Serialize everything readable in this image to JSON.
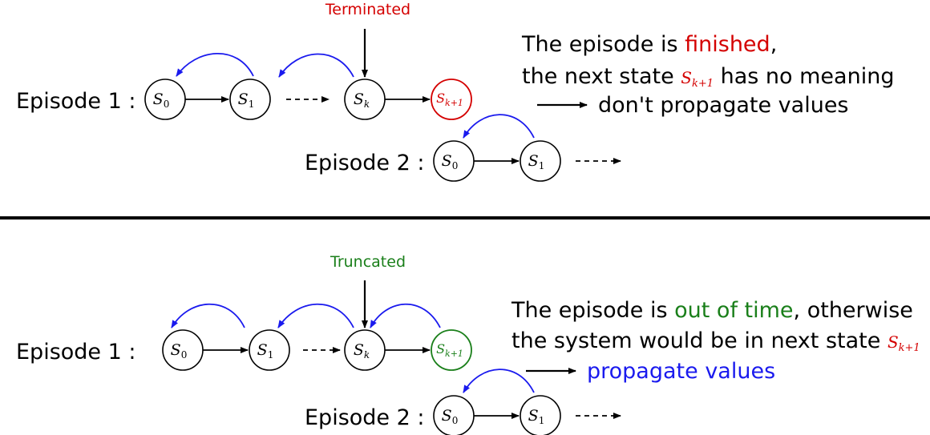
{
  "colors": {
    "black": "#000000",
    "red": "#d40000",
    "green": "#1a7f1a",
    "blue": "#1a1aee"
  },
  "top": {
    "annotation": "Terminated",
    "episode1_label": "Episode 1 :",
    "episode2_label": "Episode 2 :",
    "states1": {
      "s0": "S",
      "s0_sub": "0",
      "s1": "S",
      "s1_sub": "1",
      "sk": "S",
      "sk_sub": "k",
      "sk1": "S",
      "sk1_sub": "k+1"
    },
    "states2": {
      "s0": "S",
      "s0_sub": "0",
      "s1": "S",
      "s1_sub": "1"
    },
    "text_line1_a": "The episode is ",
    "text_line1_highlight": "finished",
    "text_line1_b": ",",
    "text_line2_a": "the next state ",
    "text_line2_state": "S",
    "text_line2_state_sub": "k+1",
    "text_line2_b": " has no meaning",
    "text_line3": "don't propagate values"
  },
  "bottom": {
    "annotation": "Truncated",
    "episode1_label": "Episode 1 :",
    "episode2_label": "Episode 2 :",
    "states1": {
      "s0": "S",
      "s0_sub": "0",
      "s1": "S",
      "s1_sub": "1",
      "sk": "S",
      "sk_sub": "k",
      "sk1": "S",
      "sk1_sub": "k+1"
    },
    "states2": {
      "s0": "S",
      "s0_sub": "0",
      "s1": "S",
      "s1_sub": "1"
    },
    "text_line1_a": "The episode is ",
    "text_line1_highlight": "out of time",
    "text_line1_b": ", otherwise",
    "text_line2_a": "the system would be in next state ",
    "text_line2_state": "S",
    "text_line2_state_sub": "k+1",
    "text_line3": "propagate values"
  }
}
